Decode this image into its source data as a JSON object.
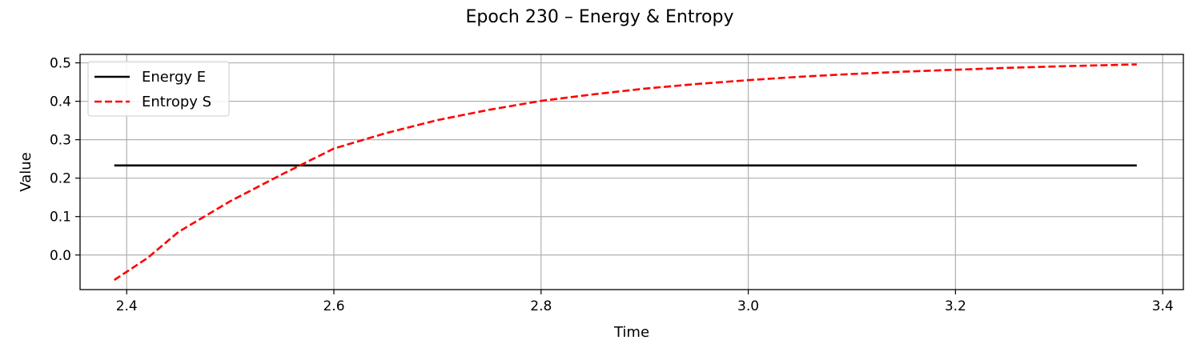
{
  "chart_data": {
    "type": "line",
    "title": "Epoch 230 – Energy & Entropy",
    "xlabel": "Time",
    "ylabel": "Value",
    "xlim": [
      2.355,
      3.42
    ],
    "ylim": [
      -0.09,
      0.522
    ],
    "x_ticks": [
      2.4,
      2.6,
      2.8,
      3.0,
      3.2,
      3.4
    ],
    "x_tick_labels": [
      "2.4",
      "2.6",
      "2.8",
      "3.0",
      "3.2",
      "3.4"
    ],
    "y_ticks": [
      0.0,
      0.1,
      0.2,
      0.3,
      0.4,
      0.5
    ],
    "y_tick_labels": [
      "0.0",
      "0.1",
      "0.2",
      "0.3",
      "0.4",
      "0.5"
    ],
    "grid": true,
    "legend_position": "upper-left",
    "series": [
      {
        "name": "Energy E",
        "color": "#000000",
        "style": "solid",
        "x": [
          2.388,
          3.375
        ],
        "y": [
          0.233,
          0.233
        ]
      },
      {
        "name": "Entropy S",
        "color": "#ff0000",
        "style": "dashed",
        "x": [
          2.388,
          2.42,
          2.45,
          2.5,
          2.55,
          2.6,
          2.65,
          2.7,
          2.75,
          2.8,
          2.85,
          2.9,
          2.95,
          3.0,
          3.05,
          3.1,
          3.15,
          3.2,
          3.25,
          3.3,
          3.375
        ],
        "y": [
          -0.065,
          -0.008,
          0.06,
          0.14,
          0.21,
          0.277,
          0.317,
          0.351,
          0.378,
          0.401,
          0.418,
          0.433,
          0.445,
          0.455,
          0.464,
          0.471,
          0.477,
          0.482,
          0.487,
          0.491,
          0.496
        ]
      }
    ]
  }
}
